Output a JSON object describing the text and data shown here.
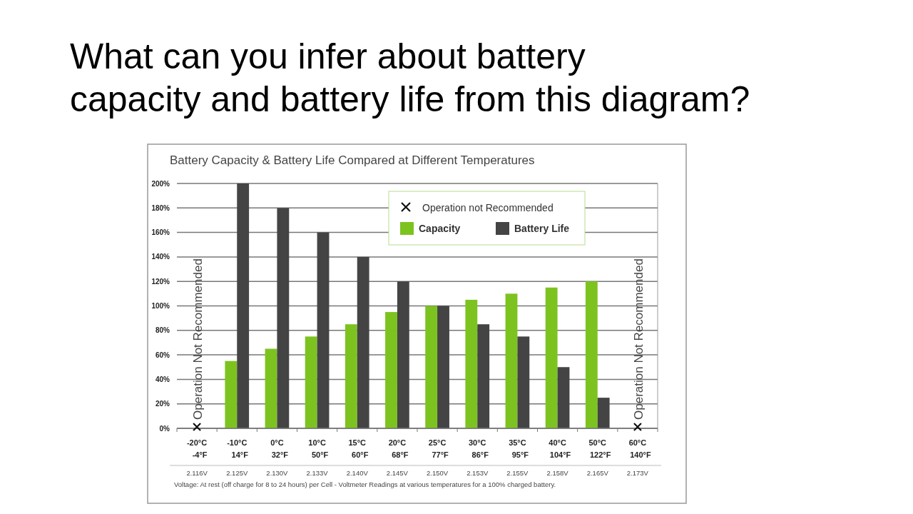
{
  "chart_data": {
    "type": "bar",
    "title": "What can you infer about battery capacity and battery life from this diagram?",
    "subtitle": "Battery Capacity & Battery Life Compared at Different Temperatures",
    "categories": [
      "-20°C\n-4°F",
      "-10°C\n14°F",
      "0°C\n32°F",
      "10°C\n50°F",
      "15°C\n60°F",
      "20°C\n68°F",
      "25°C\n77°F",
      "30°C\n86°F",
      "35°C\n95°F",
      "40°C\n104°F",
      "50°C\n122°F",
      "60°C\n140°F"
    ],
    "series": [
      {
        "name": "Capacity",
        "color": "#7dc31f",
        "values": [
          null,
          55,
          65,
          75,
          85,
          95,
          100,
          105,
          110,
          115,
          120,
          null
        ]
      },
      {
        "name": "Battery Life",
        "color": "#444444",
        "values": [
          null,
          200,
          180,
          160,
          140,
          120,
          100,
          85,
          75,
          50,
          25,
          null
        ]
      }
    ],
    "ylim": [
      0,
      200
    ],
    "yticks": [
      {
        "value": 0,
        "label": "0%"
      },
      {
        "value": 20,
        "label": "20%"
      },
      {
        "value": 40,
        "label": "40%"
      },
      {
        "value": 60,
        "label": "60%"
      },
      {
        "value": 80,
        "label": "80%"
      },
      {
        "value": 100,
        "label": "100%"
      },
      {
        "value": 120,
        "label": "120%"
      },
      {
        "value": 140,
        "label": "140%"
      },
      {
        "value": 160,
        "label": "160%"
      },
      {
        "value": 180,
        "label": "180%"
      },
      {
        "value": 200,
        "label": "200%"
      }
    ],
    "grid": "y",
    "legend": "top right",
    "annotations": [
      "2.116V",
      "2.125V",
      "2.130V",
      "2.133V",
      "2.140V",
      "2.145V",
      "2.150V",
      "2.153V",
      "2.155V",
      "2.158V",
      "2.165V",
      "2.173V",
      "Voltage:  At rest (off charge for 8 to 24 hours) per Cell - Voltmeter Readings at various temperatures for a 100% charged battery.",
      "Operation not Recommended",
      "Operation Not Recommended",
      "Operation Not Recommended"
    ]
  }
}
